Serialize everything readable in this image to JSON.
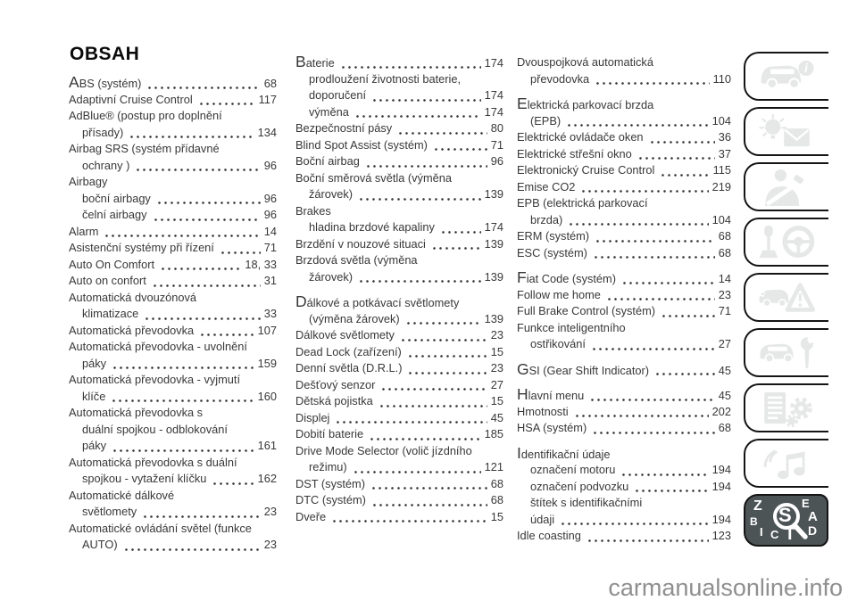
{
  "page": {
    "title": "OBSAH",
    "watermark": "carmanualsonline.info"
  },
  "colors": {
    "text": "#383838",
    "icon": "#e6e8e7",
    "tab_active_bg": "#4d5456",
    "watermark": "#8f8f8f"
  },
  "columns": [
    {
      "lines": [
        {
          "dropcap": "A",
          "text": "BS (systém)",
          "dots": true,
          "page": "68"
        },
        {
          "text": "Adaptivní Cruise Control",
          "dots": true,
          "page": "117"
        },
        {
          "text": "AdBlue® (postup pro doplnění"
        },
        {
          "text": "přísady)",
          "indent": true,
          "dots": true,
          "page": "134"
        },
        {
          "text": "Airbag SRS (systém přídavné"
        },
        {
          "text": "ochrany )",
          "indent": true,
          "dots": true,
          "page": "96"
        },
        {
          "text": "Airbagy"
        },
        {
          "text": "boční airbagy",
          "indent": true,
          "dots": true,
          "page": "96"
        },
        {
          "text": "čelní airbagy",
          "indent": true,
          "dots": true,
          "page": "96"
        },
        {
          "text": "Alarm",
          "dots": true,
          "page": "14"
        },
        {
          "text": "Asistenční systémy při řízení",
          "dots": true,
          "page": "71"
        },
        {
          "text": "Auto On Comfort",
          "dots": true,
          "page": "18, 33"
        },
        {
          "text": "Auto on confort",
          "dots": true,
          "page": "31"
        },
        {
          "text": "Automatická dvouzónová"
        },
        {
          "text": "klimatizace",
          "indent": true,
          "dots": true,
          "page": "33"
        },
        {
          "text": "Automatická převodovka",
          "dots": true,
          "page": "107"
        },
        {
          "text": "Automatická převodovka - uvolnění"
        },
        {
          "text": "páky",
          "indent": true,
          "dots": true,
          "page": "159"
        },
        {
          "text": "Automatická převodovka - vyjmutí"
        },
        {
          "text": "klíče",
          "indent": true,
          "dots": true,
          "page": "160"
        },
        {
          "text": "Automatická převodovka s"
        },
        {
          "text": "duální spojkou - odblokování",
          "indent": true
        },
        {
          "text": "páky",
          "indent": true,
          "dots": true,
          "page": "161"
        },
        {
          "text": "Automatická převodovka s duální"
        },
        {
          "text": "spojkou - vytažení klíčku",
          "indent": true,
          "dots": true,
          "page": "162"
        },
        {
          "text": "Automatické dálkové"
        },
        {
          "text": "světlomety",
          "indent": true,
          "dots": true,
          "page": "23"
        },
        {
          "text": "Automatické ovládání světel (funkce"
        },
        {
          "text": "AUTO)",
          "indent": true,
          "dots": true,
          "page": "23"
        }
      ]
    },
    {
      "lines": [
        {
          "dropcap": "B",
          "text": "aterie",
          "dots": true,
          "page": "174"
        },
        {
          "text": "prodloužení životnosti baterie,",
          "indent": true
        },
        {
          "text": "doporučení",
          "indent": true,
          "dots": true,
          "page": "174"
        },
        {
          "text": "výměna",
          "indent": true,
          "dots": true,
          "page": "174"
        },
        {
          "text": "Bezpečnostní pásy",
          "dots": true,
          "page": "80"
        },
        {
          "text": "Blind Spot Assist (systém)",
          "dots": true,
          "page": "71"
        },
        {
          "text": "Boční airbag",
          "dots": true,
          "page": "96"
        },
        {
          "text": "Boční směrová světla (výměna"
        },
        {
          "text": "žárovek)",
          "indent": true,
          "dots": true,
          "page": "139"
        },
        {
          "text": "Brakes"
        },
        {
          "text": "hladina brzdové kapaliny",
          "indent": true,
          "dots": true,
          "page": "174"
        },
        {
          "text": "Brzdění v nouzové situaci",
          "dots": true,
          "page": "139"
        },
        {
          "text": "Brzdová světla (výměna"
        },
        {
          "text": "žárovek)",
          "indent": true,
          "dots": true,
          "page": "139"
        },
        {
          "dropcap": "D",
          "text": "álkové a potkávací světlomety",
          "gap": true
        },
        {
          "text": "(výměna žárovek)",
          "indent": true,
          "dots": true,
          "page": "139"
        },
        {
          "text": "Dálkové světlomety",
          "dots": true,
          "page": "23"
        },
        {
          "text": "Dead Lock (zařízení)",
          "dots": true,
          "page": "15"
        },
        {
          "text": "Denní světla (D.R.L.)",
          "dots": true,
          "page": "23"
        },
        {
          "text": "Dešťový senzor",
          "dots": true,
          "page": "27"
        },
        {
          "text": "Dětská pojistka",
          "dots": true,
          "page": "15"
        },
        {
          "text": "Displej",
          "dots": true,
          "page": "45"
        },
        {
          "text": "Dobití baterie",
          "dots": true,
          "page": "185"
        },
        {
          "text": "Drive Mode Selector (volič jízdního"
        },
        {
          "text": "režimu)",
          "indent": true,
          "dots": true,
          "page": "121"
        },
        {
          "text": "DST (systém)",
          "dots": true,
          "page": "68"
        },
        {
          "text": "DTC (systém)",
          "dots": true,
          "page": "68"
        },
        {
          "text": "Dveře",
          "dots": true,
          "page": "15"
        }
      ]
    },
    {
      "lines": [
        {
          "text": "Dvouspojková automatická"
        },
        {
          "text": "převodovka",
          "indent": true,
          "dots": true,
          "page": "110"
        },
        {
          "dropcap": "E",
          "text": "lektrická parkovací brzda",
          "gap": true
        },
        {
          "text": "(EPB)",
          "indent": true,
          "dots": true,
          "page": "104"
        },
        {
          "text": "Elektrické ovládače oken",
          "dots": true,
          "page": "36"
        },
        {
          "text": "Elektrické střešní okno",
          "dots": true,
          "page": "37"
        },
        {
          "text": "Elektronický Cruise Control",
          "dots": true,
          "page": "115"
        },
        {
          "text": "Emise CO2",
          "dots": true,
          "page": "219"
        },
        {
          "text": "EPB (elektrická parkovací"
        },
        {
          "text": "brzda)",
          "indent": true,
          "dots": true,
          "page": "104"
        },
        {
          "text": "ERM (systém)",
          "dots": true,
          "page": "68"
        },
        {
          "text": "ESC (systém)",
          "dots": true,
          "page": "68"
        },
        {
          "dropcap": "F",
          "text": "iat Code (systém)",
          "gap": true,
          "dots": true,
          "page": "14"
        },
        {
          "text": "Follow me home",
          "dots": true,
          "page": "23"
        },
        {
          "text": "Full Brake Control (systém)",
          "dots": true,
          "page": "71"
        },
        {
          "text": "Funkce inteligentního"
        },
        {
          "text": "ostřikování",
          "indent": true,
          "dots": true,
          "page": "27"
        },
        {
          "dropcap": "G",
          "text": "SI (Gear Shift Indicator)",
          "gap": true,
          "dots": true,
          "page": "45"
        },
        {
          "dropcap": "H",
          "text": "lavní menu",
          "gap": true,
          "dots": true,
          "page": "45"
        },
        {
          "text": "Hmotnosti",
          "dots": true,
          "page": "202"
        },
        {
          "text": "HSA (systém)",
          "dots": true,
          "page": "68"
        },
        {
          "dropcap": "I",
          "text": "dentifikační údaje",
          "gap": true
        },
        {
          "text": "označení motoru",
          "indent": true,
          "dots": true,
          "page": "194"
        },
        {
          "text": "označení podvozku",
          "indent": true,
          "dots": true,
          "page": "194"
        },
        {
          "text": "štítek s identifikačními",
          "indent": true
        },
        {
          "text": "údaji",
          "indent": true,
          "dots": true,
          "page": "194"
        },
        {
          "text": "Idle coasting",
          "dots": true,
          "page": "123"
        }
      ]
    }
  ],
  "sidebar": {
    "info_symbol": "i",
    "tabs": [
      {
        "icon": "car-info-icon",
        "active": false
      },
      {
        "icon": "warning-light-message-icon",
        "active": false
      },
      {
        "icon": "seatbelt-safety-icon",
        "active": false
      },
      {
        "icon": "gearshift-steering-icon",
        "active": false
      },
      {
        "icon": "emergency-triangle-icon",
        "active": false
      },
      {
        "icon": "car-service-wrench-icon",
        "active": false
      },
      {
        "icon": "technical-data-gear-icon",
        "active": false
      },
      {
        "icon": "multimedia-audio-icon",
        "active": false
      },
      {
        "icon": "alphabetical-index-icon",
        "active": true
      }
    ],
    "index_letters": [
      "Z",
      "E",
      "S",
      "A",
      "B",
      "D",
      "I",
      "C",
      "T"
    ]
  }
}
